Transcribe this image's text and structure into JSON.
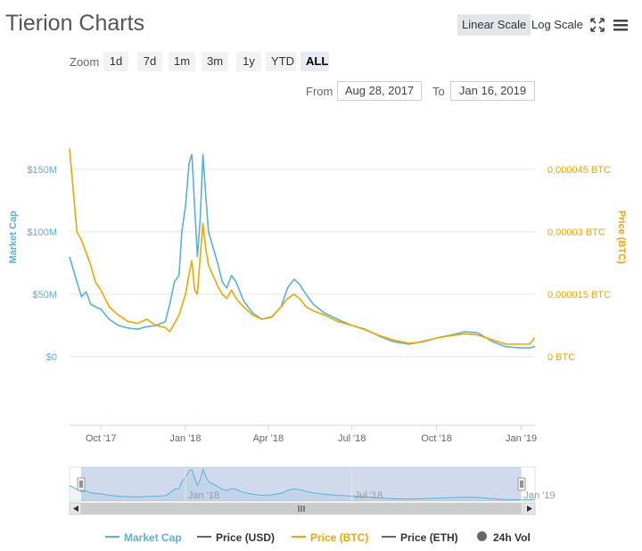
{
  "header": {
    "title": "Tierion Charts",
    "linear_scale": "Linear Scale",
    "log_scale": "Log Scale"
  },
  "zoom": {
    "label": "Zoom",
    "buttons": [
      "1d",
      "7d",
      "1m",
      "3m",
      "1y",
      "YTD",
      "ALL"
    ],
    "active": "ALL"
  },
  "range": {
    "from_label": "From",
    "from_value": "Aug 28, 2017",
    "to_label": "To",
    "to_value": "Jan 16, 2019"
  },
  "legend": [
    {
      "label": "Market Cap",
      "color": "#5ab0d6",
      "kind": "line"
    },
    {
      "label": "Price (USD)",
      "color": "#666666",
      "kind": "line"
    },
    {
      "label": "Price (BTC)",
      "color": "#f0a500",
      "kind": "line"
    },
    {
      "label": "Price (ETH)",
      "color": "#666666",
      "kind": "line"
    },
    {
      "label": "24h Vol",
      "color": "#666666",
      "kind": "dot"
    }
  ],
  "chart_data": {
    "type": "line",
    "x_ticks": [
      "Oct '17",
      "Jan '18",
      "Apr '18",
      "Jul '18",
      "Oct '18",
      "Jan '19"
    ],
    "x_tick_dates": [
      "2017-10-01",
      "2018-01-01",
      "2018-04-01",
      "2018-07-01",
      "2018-10-01",
      "2019-01-01"
    ],
    "x_range": [
      "2017-08-28",
      "2019-01-16"
    ],
    "y_left": {
      "label": "Market Cap",
      "ticks": [
        "$0",
        "$50M",
        "$100M",
        "$150M"
      ],
      "tick_values": [
        0,
        50,
        100,
        150
      ],
      "unit": "millions USD",
      "range": [
        0,
        150
      ],
      "color": "#5ab0d6"
    },
    "y_right": {
      "label": "Price (BTC)",
      "ticks": [
        "0 BTC",
        "0,000015 BTC",
        "0,00003 BTC",
        "0,000045 BTC"
      ],
      "tick_values": [
        0,
        1.5e-05,
        3e-05,
        4.5e-05
      ],
      "range": [
        0,
        4.5e-05
      ],
      "color": "#f0a500"
    },
    "grid": true,
    "navigator": {
      "ticks": [
        "Jan '18",
        "Jul '18",
        "Jan '19"
      ],
      "tick_dates": [
        "2018-01-01",
        "2018-07-01",
        "2019-01-01"
      ]
    },
    "series": [
      {
        "name": "Market Cap",
        "axis": "left",
        "color": "#5ab0d6",
        "points": [
          [
            "2017-08-28",
            80
          ],
          [
            "2017-09-01",
            70
          ],
          [
            "2017-09-05",
            60
          ],
          [
            "2017-09-10",
            48
          ],
          [
            "2017-09-15",
            52
          ],
          [
            "2017-09-20",
            42
          ],
          [
            "2017-09-25",
            40
          ],
          [
            "2017-10-01",
            38
          ],
          [
            "2017-10-10",
            30
          ],
          [
            "2017-10-20",
            25
          ],
          [
            "2017-10-30",
            23
          ],
          [
            "2017-11-10",
            22
          ],
          [
            "2017-11-20",
            24
          ],
          [
            "2017-11-30",
            25
          ],
          [
            "2017-12-10",
            28
          ],
          [
            "2017-12-15",
            42
          ],
          [
            "2017-12-20",
            60
          ],
          [
            "2017-12-25",
            65
          ],
          [
            "2017-12-28",
            100
          ],
          [
            "2018-01-01",
            120
          ],
          [
            "2018-01-05",
            155
          ],
          [
            "2018-01-08",
            162
          ],
          [
            "2018-01-11",
            120
          ],
          [
            "2018-01-14",
            80
          ],
          [
            "2018-01-17",
            110
          ],
          [
            "2018-01-20",
            162
          ],
          [
            "2018-01-23",
            130
          ],
          [
            "2018-01-26",
            100
          ],
          [
            "2018-01-30",
            90
          ],
          [
            "2018-02-05",
            75
          ],
          [
            "2018-02-10",
            60
          ],
          [
            "2018-02-15",
            55
          ],
          [
            "2018-02-20",
            65
          ],
          [
            "2018-02-25",
            60
          ],
          [
            "2018-03-05",
            45
          ],
          [
            "2018-03-15",
            35
          ],
          [
            "2018-03-25",
            30
          ],
          [
            "2018-04-05",
            32
          ],
          [
            "2018-04-15",
            40
          ],
          [
            "2018-04-22",
            55
          ],
          [
            "2018-04-29",
            62
          ],
          [
            "2018-05-05",
            58
          ],
          [
            "2018-05-12",
            50
          ],
          [
            "2018-05-20",
            42
          ],
          [
            "2018-06-01",
            35
          ],
          [
            "2018-06-15",
            30
          ],
          [
            "2018-07-01",
            25
          ],
          [
            "2018-07-15",
            22
          ],
          [
            "2018-08-01",
            16
          ],
          [
            "2018-08-15",
            12
          ],
          [
            "2018-09-01",
            10
          ],
          [
            "2018-09-15",
            12
          ],
          [
            "2018-10-01",
            15
          ],
          [
            "2018-10-15",
            17
          ],
          [
            "2018-11-01",
            20
          ],
          [
            "2018-11-15",
            19
          ],
          [
            "2018-12-01",
            12
          ],
          [
            "2018-12-15",
            8
          ],
          [
            "2019-01-01",
            7
          ],
          [
            "2019-01-10",
            7
          ],
          [
            "2019-01-16",
            8
          ]
        ]
      },
      {
        "name": "Price (BTC)",
        "axis": "right",
        "color": "#f0a500",
        "points": [
          [
            "2017-08-28",
            5e-05
          ],
          [
            "2017-09-01",
            4e-05
          ],
          [
            "2017-09-05",
            3e-05
          ],
          [
            "2017-09-10",
            2.8e-05
          ],
          [
            "2017-09-15",
            2.5e-05
          ],
          [
            "2017-09-20",
            2.2e-05
          ],
          [
            "2017-09-25",
            1.8e-05
          ],
          [
            "2017-10-01",
            1.6e-05
          ],
          [
            "2017-10-10",
            1.2e-05
          ],
          [
            "2017-10-20",
            1e-05
          ],
          [
            "2017-10-30",
            8.5e-06
          ],
          [
            "2017-11-10",
            8e-06
          ],
          [
            "2017-11-20",
            9e-06
          ],
          [
            "2017-11-30",
            7.5e-06
          ],
          [
            "2017-12-10",
            7e-06
          ],
          [
            "2017-12-15",
            6e-06
          ],
          [
            "2017-12-20",
            8e-06
          ],
          [
            "2017-12-25",
            1e-05
          ],
          [
            "2018-01-01",
            1.5e-05
          ],
          [
            "2018-01-05",
            2e-05
          ],
          [
            "2018-01-08",
            2.3e-05
          ],
          [
            "2018-01-11",
            1.6e-05
          ],
          [
            "2018-01-14",
            1.5e-05
          ],
          [
            "2018-01-17",
            2.4e-05
          ],
          [
            "2018-01-20",
            3.2e-05
          ],
          [
            "2018-01-23",
            2.6e-05
          ],
          [
            "2018-01-26",
            2.2e-05
          ],
          [
            "2018-01-30",
            2e-05
          ],
          [
            "2018-02-05",
            1.7e-05
          ],
          [
            "2018-02-10",
            1.5e-05
          ],
          [
            "2018-02-15",
            1.4e-05
          ],
          [
            "2018-02-20",
            1.6e-05
          ],
          [
            "2018-02-25",
            1.4e-05
          ],
          [
            "2018-03-05",
            1.2e-05
          ],
          [
            "2018-03-15",
            1e-05
          ],
          [
            "2018-03-25",
            9e-06
          ],
          [
            "2018-04-05",
            9.5e-06
          ],
          [
            "2018-04-15",
            1.2e-05
          ],
          [
            "2018-04-22",
            1.4e-05
          ],
          [
            "2018-04-29",
            1.5e-05
          ],
          [
            "2018-05-05",
            1.4e-05
          ],
          [
            "2018-05-12",
            1.2e-05
          ],
          [
            "2018-05-20",
            1.1e-05
          ],
          [
            "2018-06-01",
            1e-05
          ],
          [
            "2018-06-15",
            8.5e-06
          ],
          [
            "2018-07-01",
            7.5e-06
          ],
          [
            "2018-07-15",
            6.5e-06
          ],
          [
            "2018-08-01",
            5e-06
          ],
          [
            "2018-08-15",
            4e-06
          ],
          [
            "2018-09-01",
            3.2e-06
          ],
          [
            "2018-09-15",
            3.5e-06
          ],
          [
            "2018-10-01",
            4.5e-06
          ],
          [
            "2018-10-15",
            5e-06
          ],
          [
            "2018-11-01",
            5.5e-06
          ],
          [
            "2018-11-15",
            5.2e-06
          ],
          [
            "2018-12-01",
            4e-06
          ],
          [
            "2018-12-15",
            3e-06
          ],
          [
            "2019-01-01",
            3e-06
          ],
          [
            "2019-01-10",
            3e-06
          ],
          [
            "2019-01-16",
            4.5e-06
          ]
        ]
      }
    ]
  }
}
